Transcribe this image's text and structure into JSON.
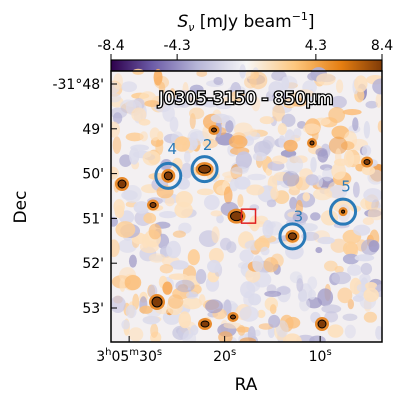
{
  "chart_data": {
    "type": "heatmap",
    "title": "J0305-3150 - 850μm",
    "xlabel": "RA",
    "ylabel": "Dec",
    "colorbar": {
      "label": "S_ν [mJy beam⁻¹]",
      "label_main": "S",
      "label_sub": "ν",
      "label_rest": " [mJy beam",
      "label_sup": "−1",
      "label_end": "]",
      "range": [
        -8.4,
        8.4
      ],
      "ticks": [
        -8.4,
        -4.3,
        4.3,
        8.4
      ],
      "tick_labels": [
        "-8.4",
        "-4.3",
        "4.3",
        "8.4"
      ],
      "colormap": "PuOr (purple negative, white zero, orange positive)"
    },
    "x_axis": {
      "range_arcsec": [
        -36.6,
        43.4
      ],
      "reversed": true,
      "ticks": [
        {
          "value": 30,
          "h": "3",
          "m": "05",
          "s": "30",
          "main": "3h05m30s"
        },
        {
          "value": 20,
          "label": "20s"
        },
        {
          "value": 10,
          "label": "10s"
        }
      ]
    },
    "y_axis": {
      "range_arcmin": [
        48.0,
        53.9
      ],
      "reversed": true,
      "ticks": [
        {
          "value": 48.0,
          "label": "-31°48'"
        },
        {
          "value": 49.0,
          "label": "49'"
        },
        {
          "value": 50.0,
          "label": "50'"
        },
        {
          "value": 51.0,
          "label": "51'"
        },
        {
          "value": 52.0,
          "label": "52'"
        },
        {
          "value": 53.0,
          "label": "53'"
        }
      ]
    },
    "sources": [
      {
        "id": "2",
        "ra_s": 22.1,
        "dec_arcmin": 49.9
      },
      {
        "id": "3",
        "ra_s": 12.9,
        "dec_arcmin": 51.4
      },
      {
        "id": "4",
        "ra_s": 25.9,
        "dec_arcmin": 50.05
      },
      {
        "id": "5",
        "ra_s": 7.6,
        "dec_arcmin": 50.85
      }
    ],
    "quasar_marker": {
      "ra_s": 17.5,
      "dec_arcmin": 50.95,
      "color": "#e02020",
      "shape": "square"
    },
    "colors": {
      "circle": "#2a7ab8",
      "negative": "#3b1a6e",
      "positive": "#b35806",
      "zero": "#f7f7f7",
      "contour": "#000000"
    }
  }
}
